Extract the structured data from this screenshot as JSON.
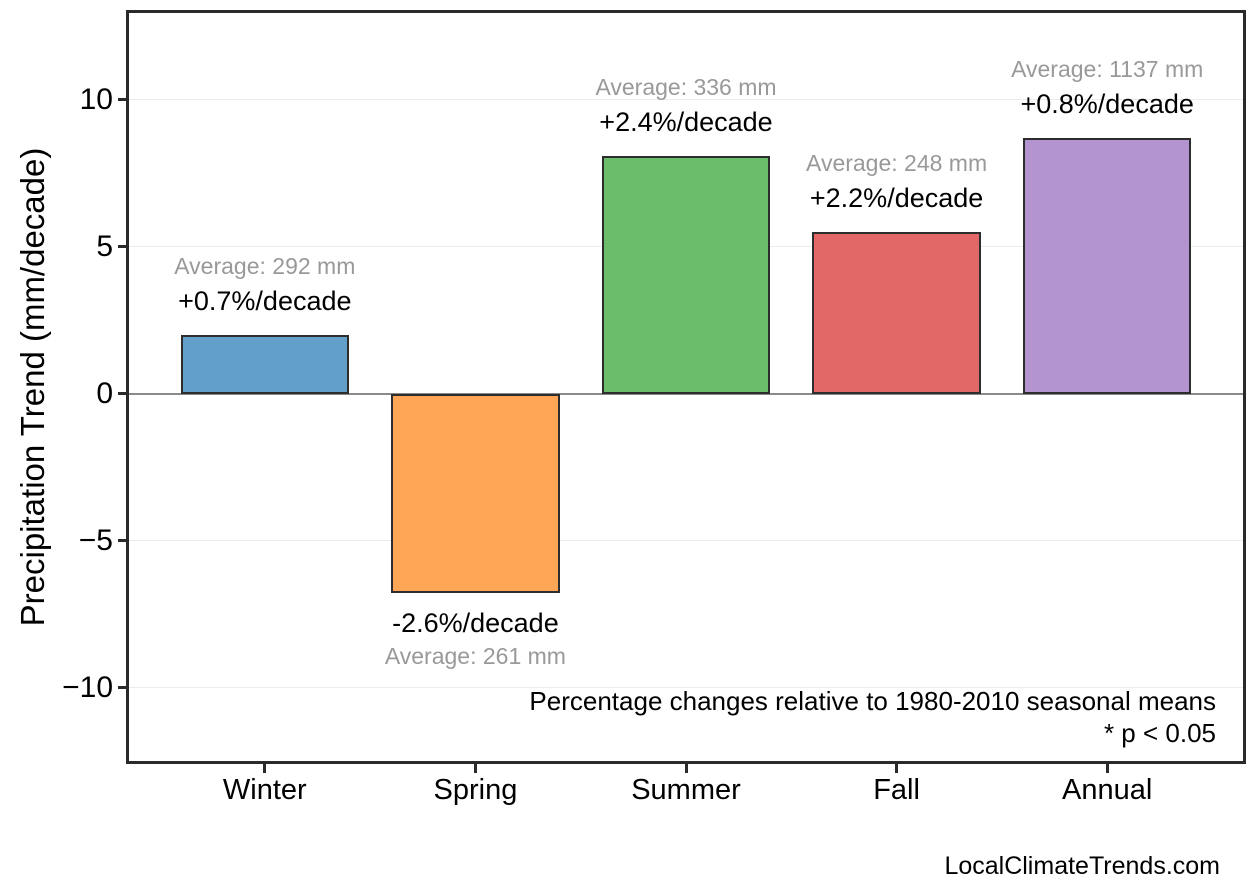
{
  "chart_data": {
    "type": "bar",
    "title": "",
    "categories": [
      "Winter",
      "Spring",
      "Summer",
      "Fall",
      "Annual"
    ],
    "values": [
      2.0,
      -6.8,
      8.1,
      5.5,
      8.7
    ],
    "bar_colors": [
      "#62a0ca",
      "#ffa556",
      "#6bbc6b",
      "#e26868",
      "#b494d0"
    ],
    "bar_edge_color": "#2d2d2d",
    "labels": [
      {
        "average": "Average: 292 mm",
        "trend": "+0.7%/decade"
      },
      {
        "average": "Average: 261 mm",
        "trend": "-2.6%/decade"
      },
      {
        "average": "Average: 336 mm",
        "trend": "+2.4%/decade"
      },
      {
        "average": "Average: 248 mm",
        "trend": "+2.2%/decade"
      },
      {
        "average": "Average: 1137 mm",
        "trend": "+0.8%/decade"
      }
    ],
    "average_values_mm": [
      292,
      261,
      336,
      248,
      1137
    ],
    "trend_pct_per_decade": [
      0.7,
      -2.6,
      2.4,
      2.2,
      0.8
    ],
    "xlabel": "",
    "ylabel": "Precipitation Trend (mm/decade)",
    "ylim": [
      -12.5,
      12.95
    ],
    "xlim": [
      -0.645,
      4.645
    ],
    "bar_width": 0.8,
    "yticks": [
      -10,
      -5,
      0,
      5,
      10
    ],
    "ytick_labels": [
      "−10",
      "−5",
      "0",
      "5",
      "10"
    ],
    "grid": "horizontal",
    "zero_line": true,
    "legend": "none",
    "annotations": [
      "Percentage changes relative to 1980-2010 seasonal means",
      "* p < 0.05"
    ],
    "watermark": "LocalClimateTrends.com",
    "gray_text_color": "#999999",
    "grid_color": "#ececec",
    "zero_line_color": "#8a8a8a"
  }
}
